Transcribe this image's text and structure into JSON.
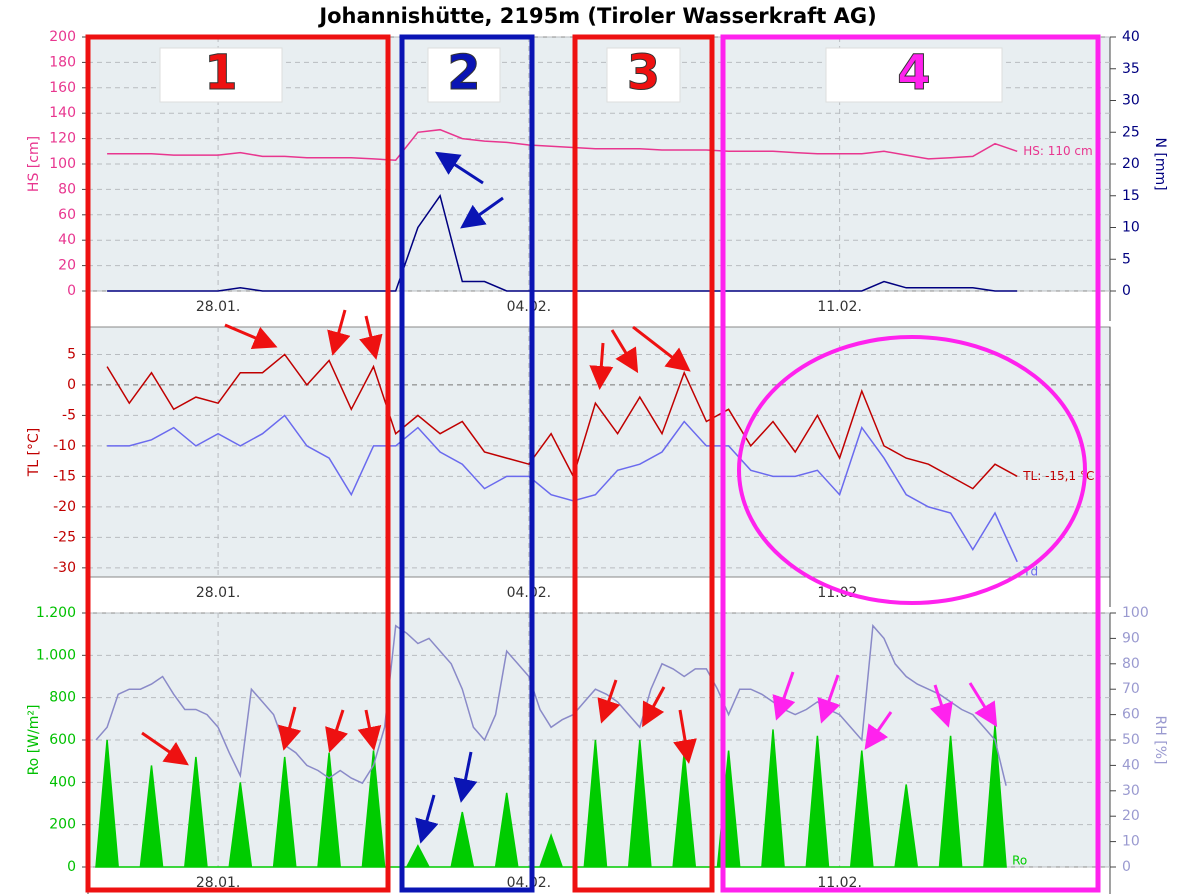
{
  "title": "Johannishütte, 2195m (Tiroler Wasserkraft AG)",
  "annotations": [
    "1",
    "2",
    "3",
    "4"
  ],
  "chart_data": [
    {
      "type": "line",
      "ylabel": "HS [cm]",
      "y2label": "N [mm]",
      "ylabel_color": "#e8368f",
      "y2label_color": "#000080",
      "x": [
        25.5,
        26,
        26.5,
        27,
        27.5,
        28,
        28.5,
        29,
        29.5,
        30,
        30.5,
        31,
        31.5,
        32,
        32.5,
        33,
        33.5,
        34,
        34.5,
        35,
        35.5,
        36,
        36.5,
        37,
        37.5,
        38,
        38.5,
        39,
        39.5,
        40,
        40.5,
        41,
        41.5,
        42,
        42.5,
        43,
        43.5,
        44,
        44.5,
        45,
        45.5,
        46
      ],
      "xlim": [
        25.07,
        48.09
      ],
      "xticks": [
        {
          "value": 28,
          "label": "28.01."
        },
        {
          "value": 35,
          "label": "04.02."
        },
        {
          "value": 42,
          "label": "11.02."
        }
      ],
      "ylim": [
        0,
        200
      ],
      "yticks": [
        0,
        20,
        40,
        60,
        80,
        100,
        120,
        140,
        160,
        180,
        200
      ],
      "y2lim": [
        0,
        40
      ],
      "y2ticks": [
        0,
        5,
        10,
        15,
        20,
        25,
        30,
        35,
        40
      ],
      "grid": true,
      "series": [
        {
          "label": "HS: 110 cm",
          "color": "#e8368f",
          "values": [
            108,
            108,
            108,
            107,
            107,
            107,
            109,
            106,
            106,
            105,
            105,
            105,
            104,
            103,
            125,
            127,
            120,
            118,
            117,
            115,
            114,
            113,
            112,
            112,
            112,
            111,
            111,
            111,
            110,
            110,
            110,
            109,
            108,
            108,
            108,
            110,
            107,
            104,
            105,
            106,
            116,
            110
          ]
        },
        {
          "color": "#000080",
          "axis": "y2",
          "values": [
            0,
            0,
            0,
            0,
            0,
            0,
            0.5,
            0,
            0,
            0,
            0,
            0,
            0,
            0,
            10,
            15,
            1.5,
            1.5,
            0,
            0,
            0,
            0,
            0,
            0,
            0,
            0,
            0,
            0,
            0,
            0,
            0,
            0,
            0,
            0,
            0,
            1.5,
            0.5,
            0.5,
            0.5,
            0.5,
            0,
            0
          ]
        }
      ]
    },
    {
      "type": "line",
      "ylabel": "TL [°C]",
      "ylabel_color": "#c00000",
      "x": [
        25.5,
        26,
        26.5,
        27,
        27.5,
        28,
        28.5,
        29,
        29.5,
        30,
        30.5,
        31,
        31.5,
        32,
        32.5,
        33,
        33.5,
        34,
        34.5,
        35,
        35.5,
        36,
        36.5,
        37,
        37.5,
        38,
        38.5,
        39,
        39.5,
        40,
        40.5,
        41,
        41.5,
        42,
        42.5,
        43,
        43.5,
        44,
        44.5,
        45,
        45.5,
        46
      ],
      "xlim": [
        25.07,
        48.09
      ],
      "xticks": [
        {
          "value": 28,
          "label": "28.01."
        },
        {
          "value": 35,
          "label": "04.02."
        },
        {
          "value": 42,
          "label": "11.02."
        }
      ],
      "ylim": [
        -31.5,
        9.5
      ],
      "yticks": [
        5,
        0,
        -5,
        -10,
        -15,
        -20,
        -25,
        -30
      ],
      "grid": true,
      "series": [
        {
          "label": "TL: -15,1 °C",
          "color": "#c00000",
          "values": [
            3,
            -3,
            2,
            -4,
            -2,
            -3,
            2,
            2,
            5,
            0,
            4,
            -4,
            3,
            -8,
            -5,
            -8,
            -6,
            -11,
            -12,
            -13,
            -8,
            -15,
            -3,
            -8,
            -2,
            -8,
            2,
            -6,
            -4,
            -10,
            -6,
            -11,
            -5,
            -12,
            -1,
            -10,
            -12,
            -13,
            -15,
            -17,
            -13,
            -15
          ]
        },
        {
          "label": "Td",
          "color": "#6a6aee",
          "values": [
            -10,
            -10,
            -9,
            -7,
            -10,
            -8,
            -10,
            -8,
            -5,
            -10,
            -12,
            -18,
            -10,
            -10,
            -7,
            -11,
            -13,
            -17,
            -15,
            -15,
            -18,
            -19,
            -18,
            -14,
            -13,
            -11,
            -6,
            -10,
            -10,
            -14,
            -15,
            -15,
            -14,
            -18,
            -7,
            -12,
            -18,
            -20,
            -21,
            -27,
            -21,
            -29
          ]
        }
      ]
    },
    {
      "type": "line",
      "ylabel": "Ro [W/m²]",
      "y2label": "RH [%]",
      "ylabel_color": "#00c000",
      "y2label_color": "#9a9ad0",
      "x": [
        25.25,
        25.5,
        25.75,
        26,
        26.25,
        26.5,
        26.75,
        27,
        27.25,
        27.5,
        27.75,
        28,
        28.25,
        28.5,
        28.75,
        29,
        29.25,
        29.5,
        29.75,
        30,
        30.25,
        30.5,
        30.75,
        31,
        31.25,
        31.5,
        31.75,
        32,
        32.25,
        32.5,
        32.75,
        33,
        33.25,
        33.5,
        33.75,
        34,
        34.25,
        34.5,
        34.75,
        35,
        35.25,
        35.5,
        35.75,
        36,
        36.25,
        36.5,
        36.75,
        37,
        37.25,
        37.5,
        37.75,
        38,
        38.25,
        38.5,
        38.75,
        39,
        39.25,
        39.5,
        39.75,
        40,
        40.25,
        40.5,
        40.75,
        41,
        41.25,
        41.5,
        41.75,
        42,
        42.25,
        42.5,
        42.75,
        43,
        43.25,
        43.5,
        43.75,
        44,
        44.25,
        44.5,
        44.75,
        45,
        45.25,
        45.5,
        45.75
      ],
      "xlim": [
        25.07,
        48.09
      ],
      "xticks": [
        {
          "value": 28,
          "label": "28.01."
        },
        {
          "value": 35,
          "label": "04.02."
        },
        {
          "value": 42,
          "label": "11.02."
        }
      ],
      "ylim": [
        0,
        1200
      ],
      "yticks": [
        0,
        200,
        400,
        600,
        800,
        {
          "value": 1000,
          "label": "1.000"
        },
        {
          "value": 1200,
          "label": "1.200"
        }
      ],
      "y2lim": [
        0,
        100
      ],
      "y2ticks": [
        0,
        10,
        20,
        30,
        40,
        50,
        60,
        70,
        80,
        90,
        100
      ],
      "grid": true,
      "series": [
        {
          "label": "Ro",
          "color": "#00cc00",
          "fill": true,
          "values": [
            0,
            600,
            0,
            0,
            0,
            480,
            0,
            0,
            0,
            520,
            0,
            0,
            0,
            400,
            0,
            0,
            0,
            520,
            0,
            0,
            0,
            540,
            0,
            0,
            0,
            550,
            0,
            0,
            0,
            100,
            0,
            0,
            0,
            260,
            0,
            0,
            0,
            350,
            0,
            0,
            0,
            150,
            0,
            0,
            0,
            600,
            0,
            0,
            0,
            600,
            0,
            0,
            0,
            540,
            0,
            0,
            0,
            550,
            0,
            0,
            0,
            650,
            0,
            0,
            0,
            620,
            0,
            0,
            0,
            550,
            0,
            0,
            0,
            390,
            0,
            0,
            0,
            620,
            0,
            0,
            0,
            670,
            0
          ]
        },
        {
          "color": "#8a8ac8",
          "axis": "y2",
          "values": [
            50,
            55,
            68,
            70,
            70,
            72,
            75,
            68,
            62,
            62,
            60,
            55,
            45,
            36,
            70,
            65,
            60,
            48,
            45,
            40,
            38,
            35,
            38,
            35,
            33,
            40,
            55,
            95,
            92,
            88,
            90,
            85,
            80,
            70,
            55,
            50,
            60,
            85,
            80,
            75,
            62,
            55,
            58,
            60,
            65,
            70,
            68,
            65,
            60,
            55,
            70,
            80,
            78,
            75,
            78,
            78,
            70,
            60,
            70,
            70,
            68,
            65,
            62,
            60,
            62,
            65,
            62,
            60,
            55,
            50,
            95,
            90,
            80,
            75,
            72,
            70,
            68,
            65,
            62,
            60,
            55,
            50,
            32
          ]
        }
      ]
    }
  ]
}
